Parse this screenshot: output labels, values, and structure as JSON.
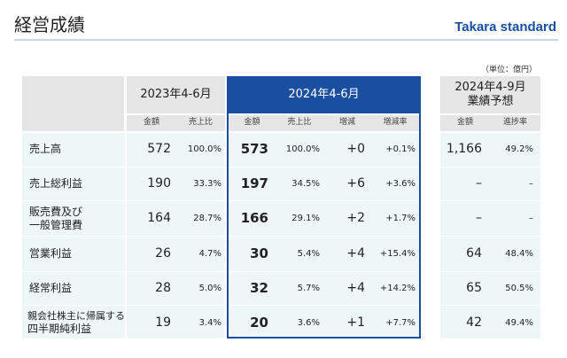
{
  "header": {
    "title": "経営成績",
    "brand": "Takara standard",
    "unit": "（単位：億円）"
  },
  "columns": {
    "p2023": "2023年4-6月",
    "p2024": "2024年4-6月",
    "forecast_l1": "2024年4-9月",
    "forecast_l2": "業績予想"
  },
  "subheaders": {
    "amount": "金額",
    "ratio": "売上比",
    "change": "増減",
    "change_rate": "増減率",
    "progress": "進捗率"
  },
  "rows": [
    {
      "label1": "売上高",
      "label2": "",
      "a23": "572",
      "r23": "100.0%",
      "a24": "573",
      "r24": "100.0%",
      "chg": "+0",
      "chgr": "+0.1%",
      "fa": "1,166",
      "fp": "49.2%"
    },
    {
      "label1": "売上総利益",
      "label2": "",
      "a23": "190",
      "r23": "33.3%",
      "a24": "197",
      "r24": "34.5%",
      "chg": "+6",
      "chgr": "+3.6%",
      "fa": "–",
      "fp": "–"
    },
    {
      "label1": "販売費及び",
      "label2": "一般管理費",
      "a23": "164",
      "r23": "28.7%",
      "a24": "166",
      "r24": "29.1%",
      "chg": "+2",
      "chgr": "+1.7%",
      "fa": "–",
      "fp": "–"
    },
    {
      "label1": "営業利益",
      "label2": "",
      "a23": "26",
      "r23": "4.7%",
      "a24": "30",
      "r24": "5.4%",
      "chg": "+4",
      "chgr": "+15.4%",
      "fa": "64",
      "fp": "48.4%"
    },
    {
      "label1": "経常利益",
      "label2": "",
      "a23": "28",
      "r23": "5.0%",
      "a24": "32",
      "r24": "5.7%",
      "chg": "+4",
      "chgr": "+14.2%",
      "fa": "65",
      "fp": "50.5%"
    },
    {
      "label1": "親会社株主に帰属する",
      "label2": "四半期純利益",
      "a23": "19",
      "r23": "3.4%",
      "a24": "20",
      "r24": "3.6%",
      "chg": "+1",
      "chgr": "+7.7%",
      "fa": "42",
      "fp": "49.4%"
    }
  ]
}
